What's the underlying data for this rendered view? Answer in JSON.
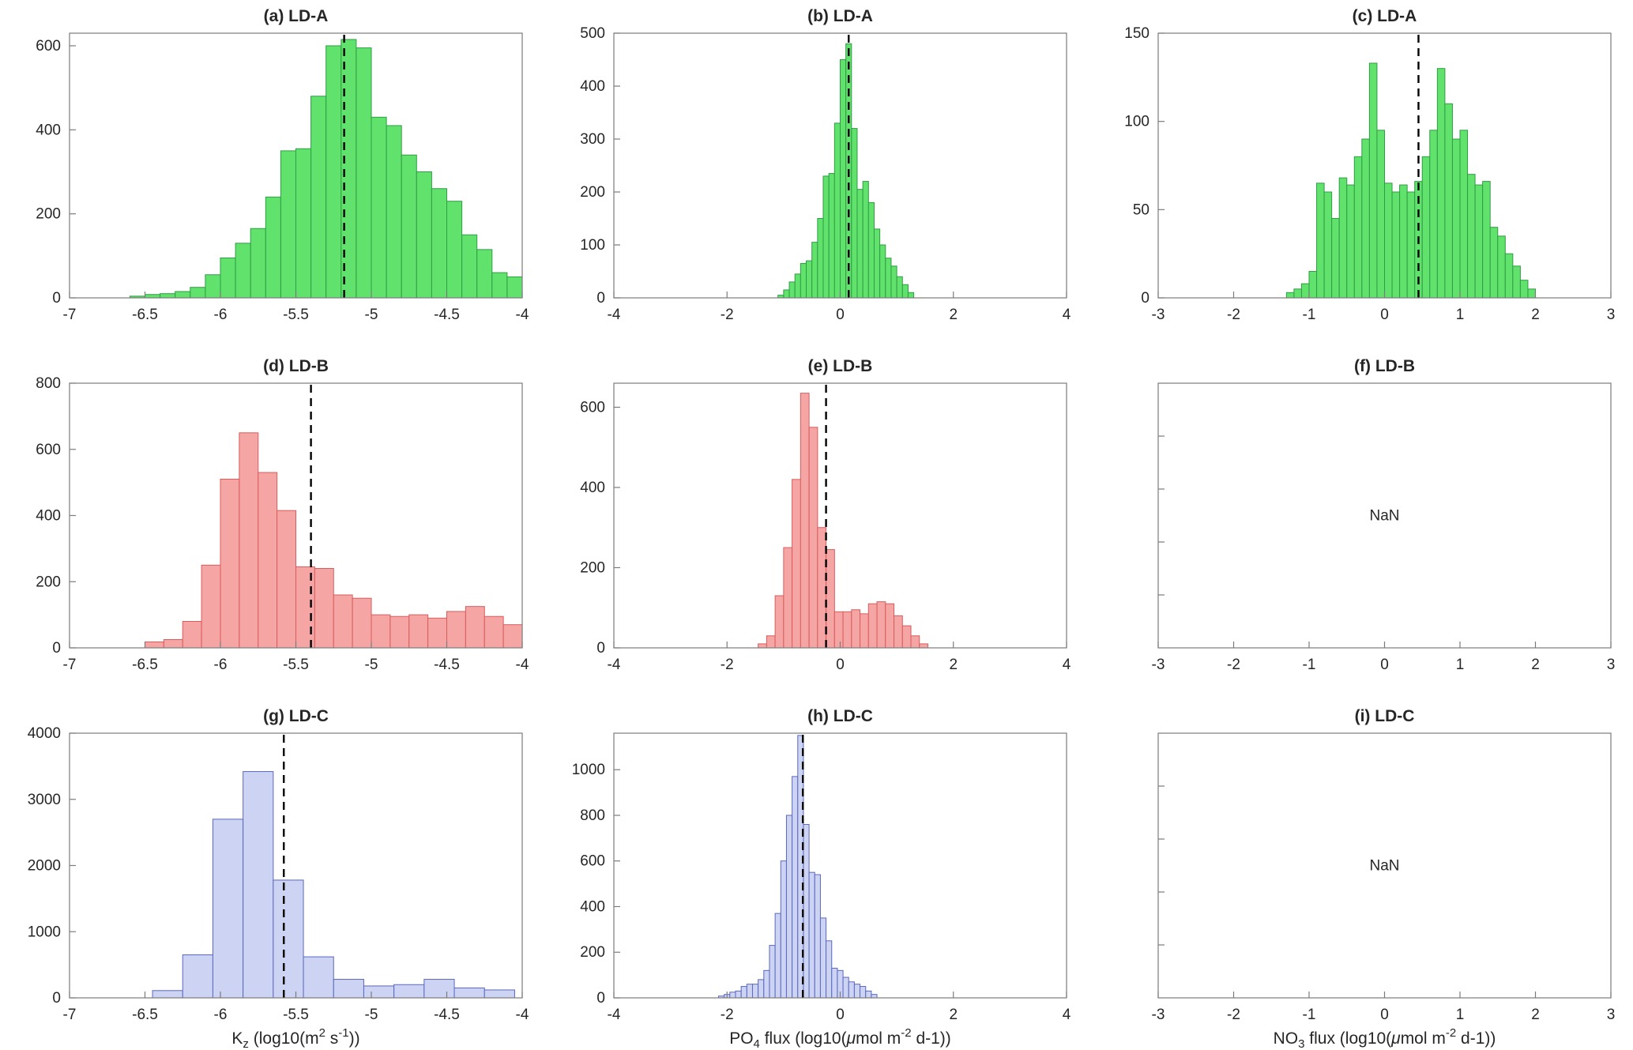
{
  "figure": {
    "background": "#ffffff",
    "axis_color": "#7b7b7b",
    "text_color": "#262626"
  },
  "chart_data": [
    {
      "id": "a",
      "type": "bar",
      "title": "(a) LD-A",
      "fill": "#60e26c",
      "edge": "#2f9e43",
      "xlim": [
        -7,
        -4
      ],
      "ylim": [
        0,
        630
      ],
      "xticks": [
        -7,
        -6.5,
        -6,
        -5.5,
        -5,
        -4.5,
        -4
      ],
      "yticks": [
        0,
        200,
        400,
        600
      ],
      "bin_start": -6.6,
      "bin_width": 0.1,
      "counts": [
        4,
        8,
        10,
        15,
        25,
        55,
        95,
        130,
        165,
        240,
        350,
        355,
        480,
        600,
        615,
        595,
        430,
        410,
        340,
        300,
        260,
        230,
        150,
        115,
        60,
        50
      ],
      "vline": -5.18,
      "vline_color": "#000000"
    },
    {
      "id": "b",
      "type": "bar",
      "title": "(b) LD-A",
      "fill": "#60e26c",
      "edge": "#2f9e43",
      "xlim": [
        -4,
        4
      ],
      "ylim": [
        0,
        500
      ],
      "xticks": [
        -4,
        -2,
        0,
        2,
        4
      ],
      "yticks": [
        0,
        100,
        200,
        300,
        400,
        500
      ],
      "bin_start": -1.1,
      "bin_width": 0.1,
      "counts": [
        5,
        15,
        30,
        45,
        65,
        70,
        105,
        150,
        230,
        235,
        330,
        450,
        480,
        320,
        205,
        220,
        180,
        130,
        100,
        75,
        60,
        40,
        25,
        10
      ],
      "vline": 0.15,
      "vline_color": "#000000"
    },
    {
      "id": "c",
      "type": "bar",
      "title": "(c) LD-A",
      "fill": "#60e26c",
      "edge": "#2f9e43",
      "xlim": [
        -3,
        3
      ],
      "ylim": [
        0,
        150
      ],
      "xticks": [
        -3,
        -2,
        -1,
        0,
        1,
        2,
        3
      ],
      "yticks": [
        0,
        50,
        100,
        150
      ],
      "bin_start": -1.3,
      "bin_width": 0.1,
      "counts": [
        3,
        5,
        8,
        15,
        65,
        60,
        45,
        68,
        64,
        80,
        90,
        133,
        95,
        65,
        60,
        64,
        60,
        66,
        80,
        95,
        130,
        110,
        90,
        95,
        70,
        64,
        66,
        40,
        35,
        25,
        18,
        10,
        5
      ],
      "vline": 0.45,
      "vline_color": "#000000"
    },
    {
      "id": "d",
      "type": "bar",
      "title": "(d) LD-B",
      "fill": "#f6a5a5",
      "edge": "#d95c5c",
      "xlim": [
        -7,
        -4
      ],
      "ylim": [
        0,
        800
      ],
      "xticks": [
        -7,
        -6.5,
        -6,
        -5.5,
        -5,
        -4.5,
        -4
      ],
      "yticks": [
        0,
        200,
        400,
        600,
        800
      ],
      "bin_start": -6.5,
      "bin_width": 0.125,
      "counts": [
        18,
        25,
        80,
        250,
        510,
        650,
        530,
        415,
        245,
        240,
        160,
        150,
        100,
        95,
        100,
        90,
        110,
        125,
        95,
        70
      ],
      "vline": -5.4,
      "vline_color": "#000000"
    },
    {
      "id": "e",
      "type": "bar",
      "title": "(e) LD-B",
      "fill": "#f6a5a5",
      "edge": "#d95c5c",
      "xlim": [
        -4,
        4
      ],
      "ylim": [
        0,
        660
      ],
      "xticks": [
        -4,
        -2,
        0,
        2,
        4
      ],
      "yticks": [
        0,
        200,
        400,
        600
      ],
      "bin_start": -1.45,
      "bin_width": 0.15,
      "counts": [
        10,
        30,
        130,
        250,
        420,
        635,
        550,
        300,
        245,
        90,
        90,
        95,
        85,
        110,
        115,
        110,
        80,
        55,
        30,
        10
      ],
      "vline": -0.25,
      "vline_color": "#000000"
    },
    {
      "id": "f",
      "type": "empty",
      "title": "(f) LD-B",
      "nan_label": "NaN",
      "xlim": [
        -3,
        3
      ],
      "ylim": [
        0,
        1
      ],
      "xticks": [
        -3,
        -2,
        -1,
        0,
        1,
        2,
        3
      ],
      "yticks": [
        0.2,
        0.4,
        0.6,
        0.8
      ],
      "ytick_labels": false
    },
    {
      "id": "g",
      "type": "bar",
      "title": "(g) LD-C",
      "fill": "#ccd3f3",
      "edge": "#5a68bf",
      "xlim": [
        -7,
        -4
      ],
      "ylim": [
        0,
        4000
      ],
      "xticks": [
        -7,
        -6.5,
        -6,
        -5.5,
        -5,
        -4.5,
        -4
      ],
      "yticks": [
        0,
        1000,
        2000,
        3000,
        4000
      ],
      "bin_start": -6.45,
      "bin_width": 0.2,
      "counts": [
        110,
        650,
        2700,
        3420,
        1780,
        620,
        280,
        180,
        200,
        280,
        150,
        120
      ],
      "vline": -5.58,
      "vline_color": "#000000",
      "xlabel_parts": [
        {
          "t": "K"
        },
        {
          "t": "z",
          "s": "sub"
        },
        {
          "t": " (log10(m"
        },
        {
          "t": "2",
          "s": "sup"
        },
        {
          "t": " s"
        },
        {
          "t": "-1",
          "s": "sup"
        },
        {
          "t": "))"
        }
      ]
    },
    {
      "id": "h",
      "type": "bar",
      "title": "(h) LD-C",
      "fill": "#ccd3f3",
      "edge": "#5a68bf",
      "xlim": [
        -4,
        4
      ],
      "ylim": [
        0,
        1160
      ],
      "xticks": [
        -4,
        -2,
        0,
        2,
        4
      ],
      "yticks": [
        0,
        200,
        400,
        600,
        800,
        1000
      ],
      "bin_start": -2.15,
      "bin_width": 0.1,
      "counts": [
        8,
        15,
        25,
        30,
        50,
        60,
        60,
        80,
        120,
        230,
        370,
        600,
        800,
        970,
        1150,
        760,
        550,
        540,
        350,
        250,
        130,
        120,
        90,
        70,
        60,
        50,
        30,
        15
      ],
      "vline": -0.66,
      "vline_color": "#000000",
      "xlabel_parts": [
        {
          "t": "PO"
        },
        {
          "t": "4",
          "s": "sub"
        },
        {
          "t": " flux (log10("
        },
        {
          "t": "μ",
          "s": "it"
        },
        {
          "t": "mol m"
        },
        {
          "t": "-2",
          "s": "sup"
        },
        {
          "t": " d-1))"
        }
      ]
    },
    {
      "id": "i",
      "type": "empty",
      "title": "(i) LD-C",
      "nan_label": "NaN",
      "xlim": [
        -3,
        3
      ],
      "ylim": [
        0,
        1
      ],
      "xticks": [
        -3,
        -2,
        -1,
        0,
        1,
        2,
        3
      ],
      "yticks": [
        0.2,
        0.4,
        0.6,
        0.8
      ],
      "ytick_labels": false,
      "xlabel_parts": [
        {
          "t": "NO"
        },
        {
          "t": "3",
          "s": "sub"
        },
        {
          "t": " flux (log10("
        },
        {
          "t": "μ",
          "s": "it"
        },
        {
          "t": "mol m"
        },
        {
          "t": "-2",
          "s": "sup"
        },
        {
          "t": " d-1))"
        }
      ]
    }
  ]
}
